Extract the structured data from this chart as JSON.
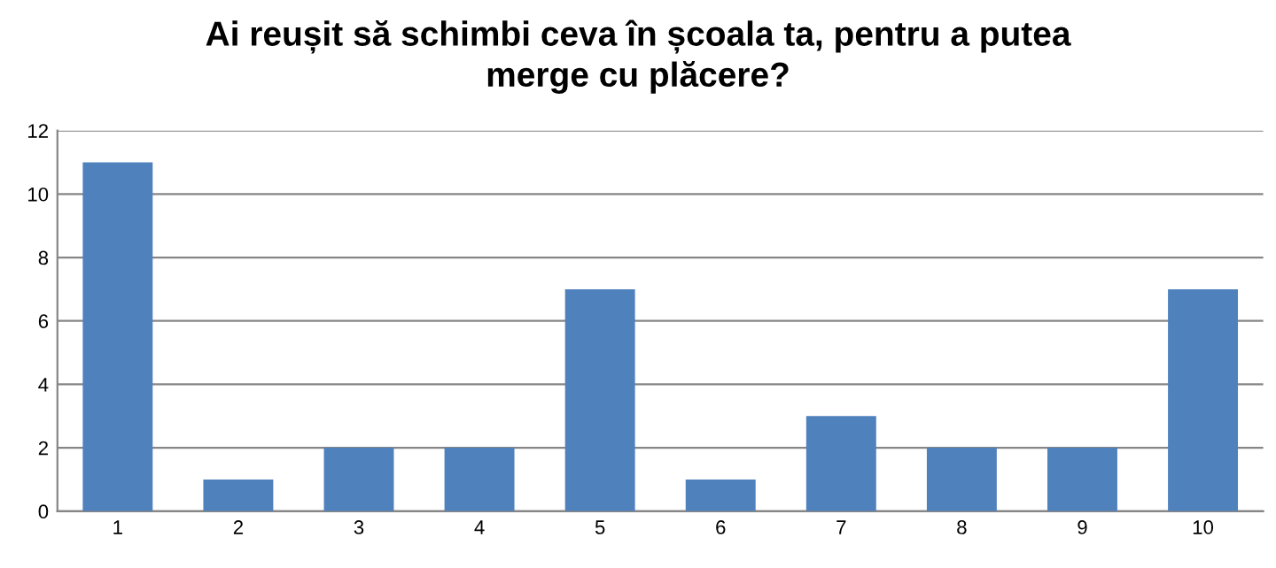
{
  "chart_data": {
    "type": "bar",
    "title": "Ai reușit să schimbi ceva în școala ta, pentru a putea\nmerge cu plăcere?",
    "categories": [
      "1",
      "2",
      "3",
      "4",
      "5",
      "6",
      "7",
      "8",
      "9",
      "10"
    ],
    "values": [
      11,
      1,
      2,
      2,
      7,
      1,
      3,
      2,
      2,
      7
    ],
    "color": "#4f81bd",
    "ylim": [
      0,
      12
    ],
    "yticks": [
      0,
      2,
      4,
      6,
      8,
      10,
      12
    ],
    "grid": "y",
    "legend": false
  }
}
